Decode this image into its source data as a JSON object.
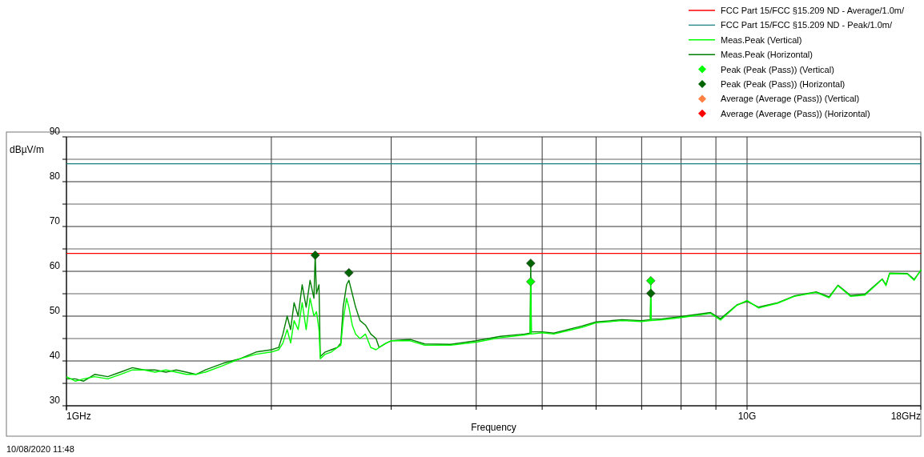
{
  "chart_data": {
    "type": "line",
    "xlabel": "Frequency",
    "ylabel": "dBµV/m",
    "log": "x",
    "xlim": [
      1,
      18
    ],
    "xticks": [
      {
        "value": 1,
        "label": "1GHz"
      },
      {
        "value": 2,
        "label": null
      },
      {
        "value": 3,
        "label": null
      },
      {
        "value": 4,
        "label": null
      },
      {
        "value": 5,
        "label": null
      },
      {
        "value": 6,
        "label": null
      },
      {
        "value": 7,
        "label": null
      },
      {
        "value": 8,
        "label": null
      },
      {
        "value": 9,
        "label": null
      },
      {
        "value": 10,
        "label": "10G"
      },
      {
        "value": 18,
        "label": "18GHz"
      }
    ],
    "ylim": [
      30,
      90
    ],
    "yticks": [
      30,
      {
        "value": 35,
        "label": null
      },
      40,
      {
        "value": 45,
        "label": null
      },
      50,
      {
        "value": 55,
        "label": null
      },
      60,
      {
        "value": 65,
        "label": null
      },
      70,
      {
        "value": 75,
        "label": null
      },
      80,
      {
        "value": 85,
        "label": null
      },
      90
    ],
    "grid": true,
    "legend": "top right",
    "annotations": [
      "10/08/2020 11:48"
    ],
    "series": [
      {
        "name": "FCC Part 15/FCC §15.209 ND - Average/1.0m/",
        "color": "#ff0000",
        "x": [
          1,
          18
        ],
        "values": [
          64,
          64
        ],
        "marker": "none"
      },
      {
        "name": "FCC Part 15/FCC §15.209 ND - Peak/1.0m/",
        "color": "#1a7f80",
        "x": [
          1,
          18
        ],
        "values": [
          84,
          84
        ],
        "marker": "none"
      },
      {
        "name": "Meas.Peak (Vertical)",
        "color": "#00ff00",
        "marker": "none",
        "x": [
          1,
          1.03,
          1.06,
          1.1,
          1.15,
          1.2,
          1.25,
          1.3,
          1.35,
          1.4,
          1.45,
          1.5,
          1.55,
          1.6,
          1.7,
          1.8,
          1.9,
          2.0,
          2.05,
          2.08,
          2.11,
          2.135,
          2.16,
          2.19,
          2.22,
          2.25,
          2.28,
          2.31,
          2.33,
          2.35,
          2.36,
          2.4,
          2.45,
          2.5,
          2.53,
          2.55,
          2.58,
          2.6,
          2.63,
          2.66,
          2.7,
          2.75,
          2.8,
          2.85,
          2.88,
          2.95,
          3.0,
          3.2,
          3.36,
          3.67,
          4.0,
          4.34,
          4.71,
          4.8,
          4.81,
          4.82,
          5.0,
          5.2,
          5.72,
          6.0,
          6.55,
          7.0,
          7.21,
          7.22,
          7.23,
          7.5,
          8.0,
          8.84,
          9.14,
          9.66,
          10,
          10.4,
          11.1,
          11.73,
          12.63,
          13.2,
          13.6,
          14.2,
          14.9,
          15.8,
          16.0,
          16.2,
          17.2,
          17.6,
          18
        ],
        "values": [
          36.5,
          35.5,
          36,
          36.5,
          36,
          37,
          38,
          38,
          37.5,
          38,
          37.5,
          37,
          37,
          37.5,
          39,
          40.5,
          41.5,
          42,
          42.5,
          44,
          47,
          44,
          49,
          47,
          53,
          47,
          54,
          50,
          51,
          47,
          40.5,
          41.5,
          42,
          43,
          43.5,
          49,
          54,
          52,
          48,
          46,
          45,
          46,
          43,
          42.5,
          43,
          44,
          44.5,
          44.5,
          43.5,
          43.5,
          44.2,
          45.2,
          45.8,
          46,
          57.7,
          46,
          46.3,
          46,
          47.5,
          48.5,
          49,
          48.8,
          49,
          57.9,
          49,
          49.2,
          49.7,
          50.6,
          49.1,
          52.4,
          53.5,
          51.8,
          52.9,
          54.4,
          55.3,
          54.1,
          56.8,
          54.4,
          54.7,
          58.2,
          56.8,
          59.5,
          59.4,
          58,
          60.3
        ]
      },
      {
        "name": "Meas.Peak (Horizontal)",
        "color": "#008000",
        "marker": "none",
        "x": [
          1,
          1.03,
          1.06,
          1.1,
          1.15,
          1.2,
          1.25,
          1.3,
          1.35,
          1.4,
          1.45,
          1.5,
          1.55,
          1.6,
          1.7,
          1.8,
          1.9,
          2.0,
          2.05,
          2.08,
          2.11,
          2.135,
          2.16,
          2.19,
          2.22,
          2.25,
          2.28,
          2.31,
          2.32,
          2.33,
          2.35,
          2.36,
          2.4,
          2.45,
          2.5,
          2.53,
          2.55,
          2.58,
          2.6,
          2.63,
          2.66,
          2.7,
          2.75,
          2.8,
          2.85,
          2.88,
          2.95,
          3.0,
          3.2,
          3.36,
          3.67,
          4.0,
          4.34,
          4.71,
          4.8,
          4.81,
          4.82,
          5.0,
          5.2,
          5.72,
          6.0,
          6.55,
          7.0,
          7.21,
          7.22,
          7.23,
          7.5,
          8.0,
          8.84,
          9.14,
          9.66,
          10,
          10.4,
          11.1,
          11.73,
          12.63,
          13.2,
          13.6,
          14.2,
          14.9,
          15.8,
          16.0,
          16.2,
          17.2,
          17.6,
          18
        ],
        "values": [
          36,
          36,
          35.5,
          37,
          36.5,
          37.5,
          38.5,
          38,
          38,
          37.5,
          38,
          37.5,
          37,
          38,
          39.5,
          40.5,
          42,
          42.5,
          43,
          46,
          50,
          47,
          53,
          50,
          57,
          52,
          58,
          54,
          63.6,
          55,
          57,
          41,
          42,
          42.5,
          43,
          44,
          52,
          57,
          58,
          55,
          52,
          49,
          48,
          46,
          45,
          43,
          44,
          44.5,
          44.8,
          43.8,
          43.7,
          44.5,
          45.5,
          46,
          46.2,
          61.8,
          46.5,
          46.5,
          46.2,
          47.8,
          48.7,
          49.2,
          49,
          49.2,
          55.1,
          49.3,
          49.4,
          49.9,
          50.8,
          49.4,
          52.5,
          53.3,
          52,
          53,
          54.5,
          55.4,
          54.3,
          56.9,
          54.6,
          54.9,
          58.3,
          57,
          59.6,
          59.5,
          58.2,
          60.2
        ]
      },
      {
        "name": "Peak (Peak (Pass)) (Vertical)",
        "type": "scatter",
        "color": "#00ff00",
        "marker": "diamond",
        "x": [
          4.81,
          7.22
        ],
        "values": [
          57.7,
          57.9
        ]
      },
      {
        "name": "Peak (Peak (Pass)) (Horizontal)",
        "type": "scatter",
        "color": "#006400",
        "marker": "diamond",
        "x": [
          2.32,
          2.6,
          4.81,
          7.22
        ],
        "values": [
          63.6,
          59.7,
          61.8,
          55.1
        ]
      },
      {
        "name": "Average (Average (Pass)) (Vertical)",
        "type": "scatter",
        "color": "#ff8040",
        "marker": "diamond"
      },
      {
        "name": "Average (Average (Pass)) (Horizontal)",
        "type": "scatter",
        "color": "#ff0000",
        "marker": "diamond"
      }
    ]
  }
}
